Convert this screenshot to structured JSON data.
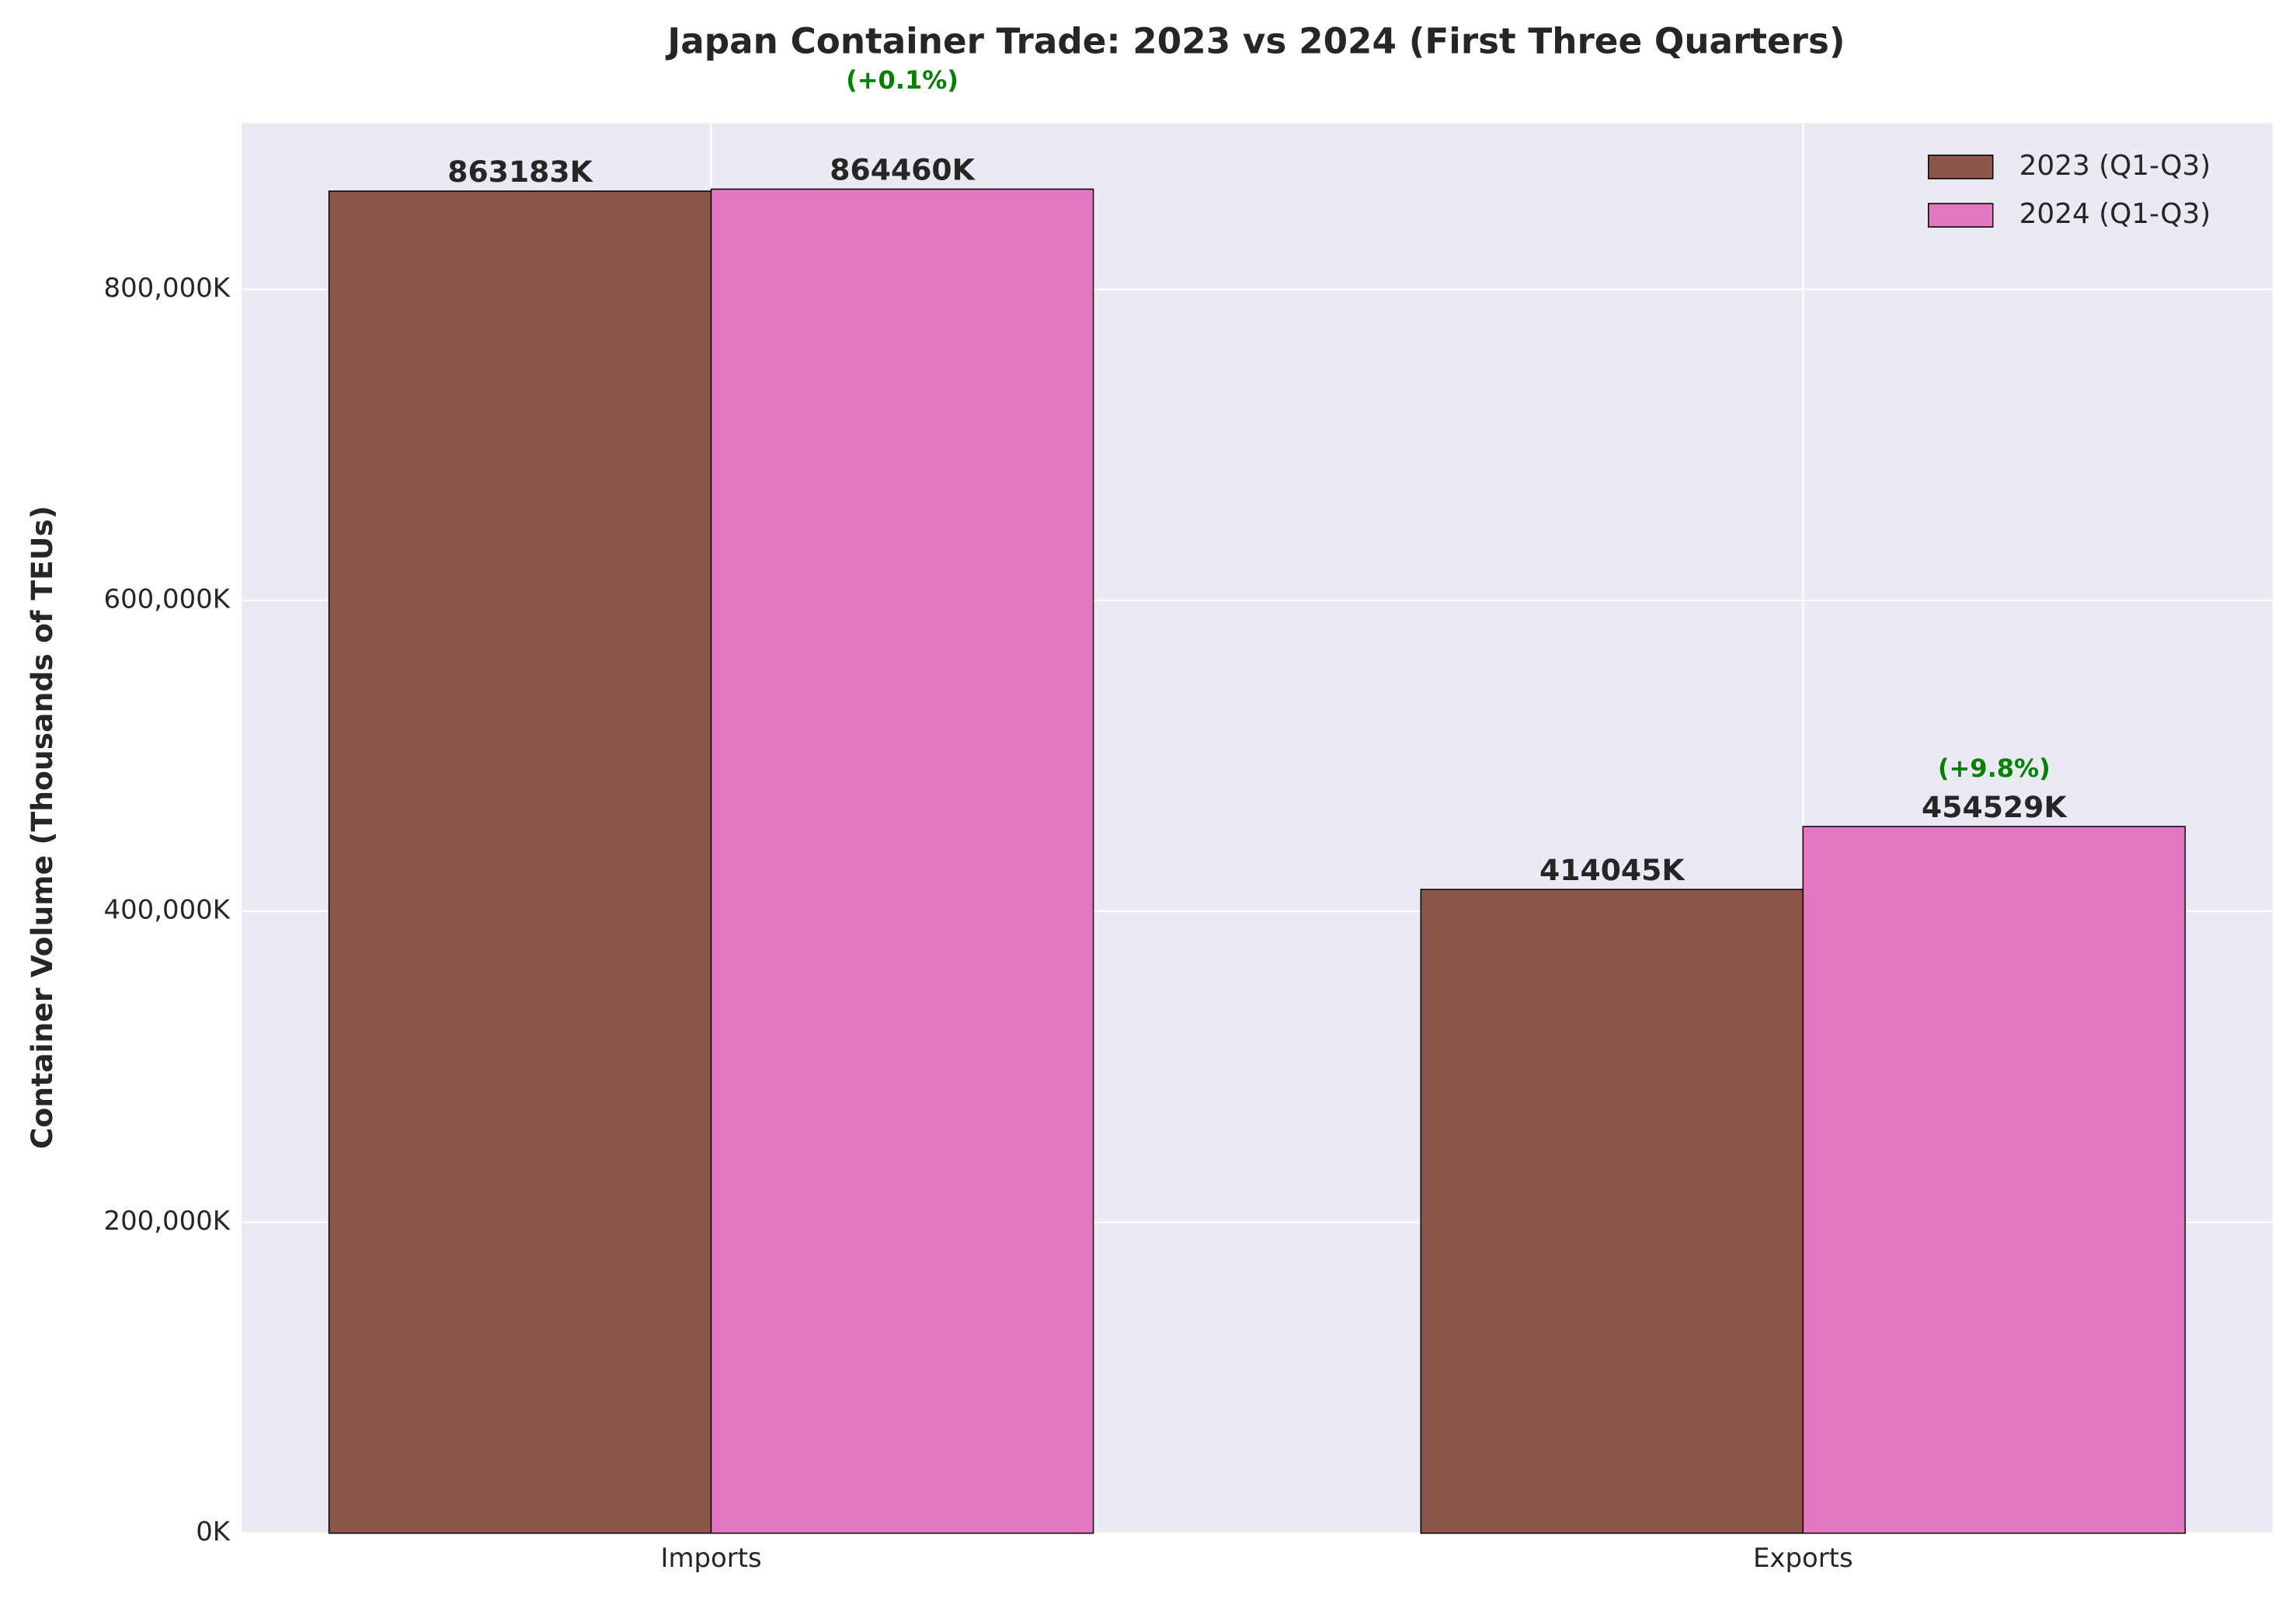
{
  "chart_data": {
    "type": "bar",
    "title": "Japan Container Trade: 2023 vs 2024 (First Three Quarters)",
    "y_label": "Container Volume (Thousands of TEUs)",
    "categories": [
      "Imports",
      "Exports"
    ],
    "series": [
      {
        "name": "2023 (Q1-Q3)",
        "color": "#8c564b",
        "values": [
          863183,
          414045
        ],
        "value_labels": [
          "863183K",
          "414045K"
        ]
      },
      {
        "name": "2024 (Q1-Q3)",
        "color": "#e377c2",
        "values": [
          864460,
          454529
        ],
        "value_labels": [
          "864460K",
          "454529K"
        ],
        "annotations": [
          "(+0.1%)",
          "(+9.8%)"
        ],
        "annotation_color": "#008000"
      }
    ],
    "ylim": [
      0,
      907000
    ],
    "yticks": [
      {
        "value": 0,
        "label": "0K"
      },
      {
        "value": 200000,
        "label": "200,000K"
      },
      {
        "value": 400000,
        "label": "400,000K"
      },
      {
        "value": 600000,
        "label": "600,000K"
      },
      {
        "value": 800000,
        "label": "800,000K"
      }
    ],
    "grid": true,
    "legend_position": "upper right"
  }
}
